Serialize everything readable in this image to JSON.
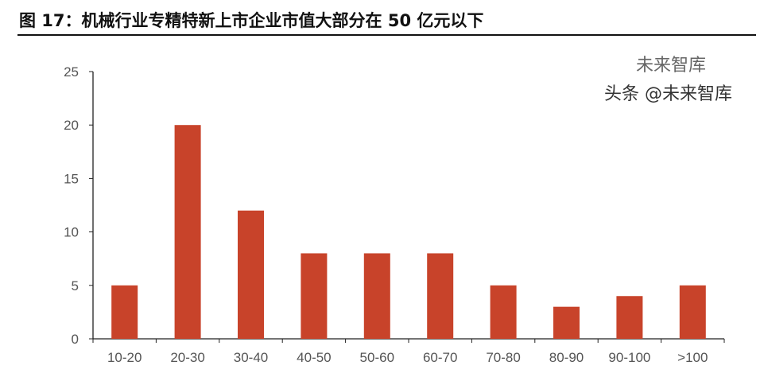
{
  "title": "图 17：机械行业专精特新上市企业市值大部分在 50 亿元以下",
  "watermark": {
    "line1": "未来智库",
    "line2": "头条 @未来智库"
  },
  "chart_data": {
    "type": "bar",
    "categories": [
      "10-20",
      "20-30",
      "30-40",
      "40-50",
      "50-60",
      "60-70",
      "70-80",
      "80-90",
      "90-100",
      ">100"
    ],
    "values": [
      5,
      20,
      12,
      8,
      8,
      8,
      5,
      3,
      4,
      5
    ],
    "ylim": [
      0,
      25
    ],
    "yticks": [
      0,
      5,
      10,
      15,
      20,
      25
    ],
    "grid": false,
    "color": "#c8432a"
  }
}
